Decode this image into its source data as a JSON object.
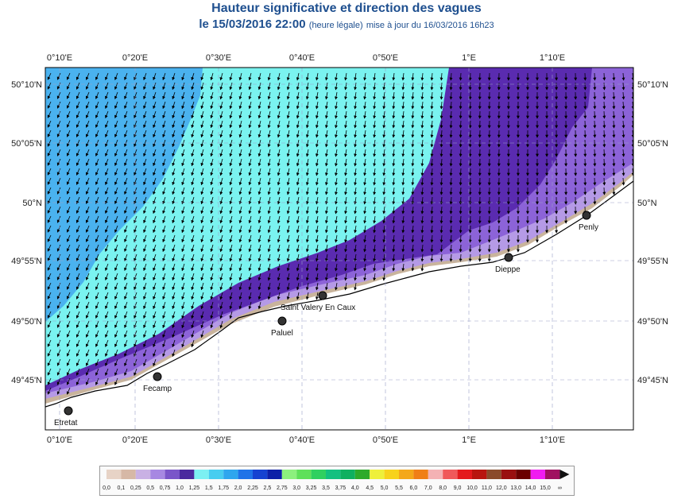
{
  "title": "Hauteur significative et direction des vagues",
  "subtitle": {
    "date_time": "le 15/03/2016 22:00",
    "qualifier": "(heure légale)",
    "update_text": "mise à jour du 16/03/2016 16h23"
  },
  "axes": {
    "longitudes": [
      "0°10'E",
      "0°20'E",
      "0°30'E",
      "0°40'E",
      "0°50'E",
      "1°E",
      "1°10'E"
    ],
    "latitudes": [
      "50°10'N",
      "50°05'N",
      "50°N",
      "49°55'N",
      "49°50'N",
      "49°45'N"
    ]
  },
  "places": [
    {
      "name": "Etretat"
    },
    {
      "name": "Fecamp"
    },
    {
      "name": "Paluel"
    },
    {
      "name": "Saint Valery En Caux"
    },
    {
      "name": "Dieppe"
    },
    {
      "name": "Penly"
    }
  ],
  "legend": {
    "labels": [
      "0,0",
      "0,1",
      "0,25",
      "0,5",
      "0,75",
      "1,0",
      "1,25",
      "1,5",
      "1,75",
      "2,0",
      "2,25",
      "2,5",
      "2,75",
      "3,0",
      "3,25",
      "3,5",
      "3,75",
      "4,0",
      "4,5",
      "5,0",
      "5,5",
      "6,0",
      "7,0",
      "8,0",
      "9,0",
      "10,0",
      "11,0",
      "12,0",
      "13,0",
      "14,0",
      "15,0",
      "∞"
    ],
    "colors": [
      "#e7d3c6",
      "#d6b8a6",
      "#c9b1e4",
      "#a788e2",
      "#7a55c9",
      "#4a2a9e",
      "#7cf0f2",
      "#48cdf0",
      "#2fa6ee",
      "#1f73e8",
      "#1542d1",
      "#0d1fa8",
      "#8cf07e",
      "#5fe05a",
      "#2fd060",
      "#13c080",
      "#0fb060",
      "#2eaa2a",
      "#eef03a",
      "#f7d21c",
      "#f4a81a",
      "#f07f17",
      "#f4b2b4",
      "#f0585a",
      "#e4191c",
      "#b8150f",
      "#8a4a2a",
      "#9a1010",
      "#6b0000",
      "#f01cf0",
      "#a01060"
    ]
  },
  "wave_zone_colors": {
    "deep_blue": "#4ab2ef",
    "cyan": "#7af3f0",
    "purple": "#5a2bb0",
    "light_purple": "#8c63d8",
    "lavender": "#b59ae6",
    "tan": "#c9b49c"
  }
}
